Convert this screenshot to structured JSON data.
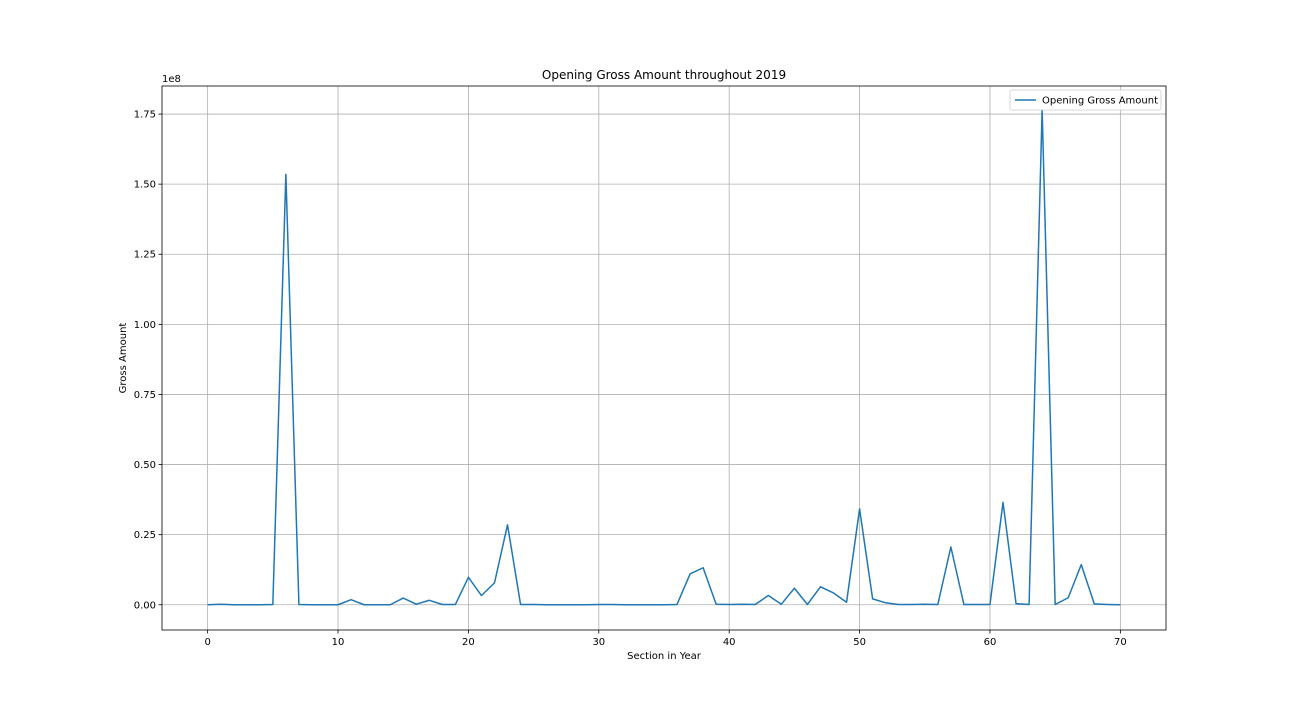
{
  "chart_data": {
    "type": "line",
    "title": "Opening Gross Amount throughout 2019",
    "xlabel": "Section in Year",
    "ylabel": "Gross Amount",
    "y_offset_label": "1e8",
    "y_scale": 100000000,
    "xlim": [
      -3.5,
      73.5
    ],
    "ylim": [
      -0.09,
      1.85
    ],
    "x_ticks": [
      0,
      10,
      20,
      30,
      40,
      50,
      60,
      70
    ],
    "x_tick_labels": [
      "0",
      "10",
      "20",
      "30",
      "40",
      "50",
      "60",
      "70"
    ],
    "y_ticks": [
      0,
      0.25,
      0.5,
      0.75,
      1.0,
      1.25,
      1.5,
      1.75
    ],
    "y_tick_labels": [
      "0.00",
      "0.25",
      "0.50",
      "0.75",
      "1.00",
      "1.25",
      "1.50",
      "1.75"
    ],
    "grid": true,
    "legend": {
      "position": "top-right"
    },
    "series": [
      {
        "name": "Opening Gross Amount",
        "color": "#1f77b4",
        "x": [
          0,
          1,
          2,
          3,
          4,
          5,
          6,
          7,
          8,
          9,
          10,
          11,
          12,
          13,
          14,
          15,
          16,
          17,
          18,
          19,
          20,
          21,
          22,
          23,
          24,
          25,
          26,
          27,
          28,
          29,
          30,
          31,
          32,
          33,
          34,
          35,
          36,
          37,
          38,
          39,
          40,
          41,
          42,
          43,
          44,
          45,
          46,
          47,
          48,
          49,
          50,
          51,
          52,
          53,
          54,
          55,
          56,
          57,
          58,
          59,
          60,
          61,
          62,
          63,
          64,
          65,
          66,
          67,
          68,
          69,
          70
        ],
        "values": [
          0.0,
          0.002,
          0.0,
          0.0,
          0.0,
          0.001,
          1.535,
          0.001,
          0.0,
          0.0,
          0.0,
          0.018,
          0.0,
          0.0,
          0.0,
          0.024,
          0.002,
          0.016,
          0.001,
          0.001,
          0.098,
          0.033,
          0.078,
          0.285,
          0.001,
          0.001,
          0.0,
          0.0,
          0.0,
          0.0,
          0.001,
          0.001,
          0.0,
          0.0,
          0.0,
          0.0,
          0.001,
          0.11,
          0.132,
          0.002,
          0.001,
          0.002,
          0.001,
          0.033,
          0.002,
          0.059,
          0.001,
          0.064,
          0.042,
          0.009,
          0.342,
          0.021,
          0.007,
          0.001,
          0.001,
          0.002,
          0.001,
          0.206,
          0.001,
          0.001,
          0.001,
          0.365,
          0.004,
          0.001,
          1.765,
          0.001,
          0.025,
          0.143,
          0.003,
          0.001,
          0.0
        ]
      }
    ]
  }
}
